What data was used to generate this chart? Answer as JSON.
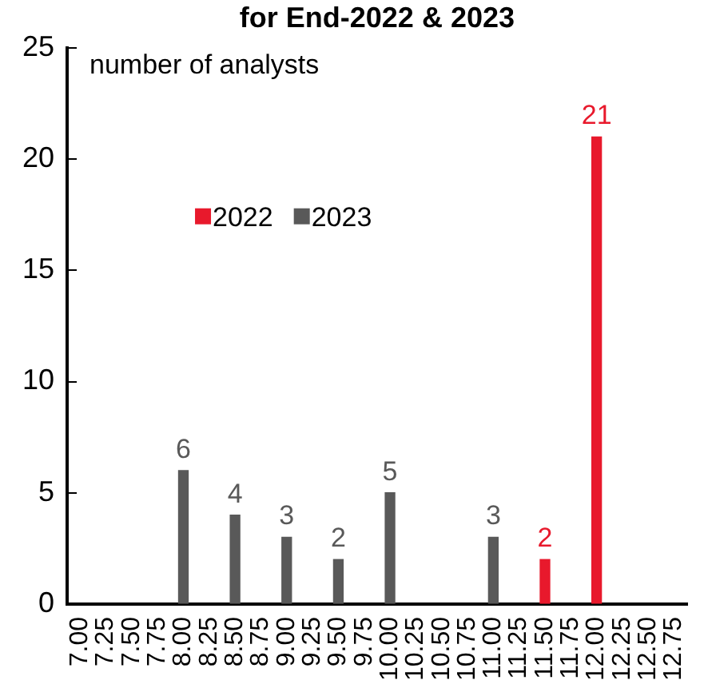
{
  "chart_data": {
    "type": "bar",
    "title": "for End-2022 & 2023",
    "ylabel": "number of analysts",
    "categories": [
      "7.00",
      "7.25",
      "7.50",
      "7.75",
      "8.00",
      "8.25",
      "8.50",
      "8.75",
      "9.00",
      "9.25",
      "9.50",
      "9.75",
      "10.00",
      "10.25",
      "10.50",
      "10.75",
      "11.00",
      "11.25",
      "11.50",
      "11.75",
      "12.00",
      "12.25",
      "12.50",
      "12.75"
    ],
    "series": [
      {
        "name": "2022",
        "color": "#e8192c",
        "values": [
          null,
          null,
          null,
          null,
          null,
          null,
          null,
          null,
          null,
          null,
          null,
          null,
          null,
          null,
          null,
          null,
          null,
          null,
          2,
          null,
          21,
          null,
          null,
          null
        ]
      },
      {
        "name": "2023",
        "color": "#595959",
        "values": [
          null,
          null,
          null,
          null,
          6,
          null,
          4,
          null,
          3,
          null,
          2,
          null,
          5,
          null,
          null,
          null,
          3,
          null,
          null,
          null,
          null,
          null,
          null,
          null
        ]
      }
    ],
    "ylim": [
      0,
      25
    ],
    "yticks": [
      0,
      5,
      10,
      15,
      20,
      25
    ],
    "grid": false,
    "legend": "top",
    "data_labels": true
  }
}
